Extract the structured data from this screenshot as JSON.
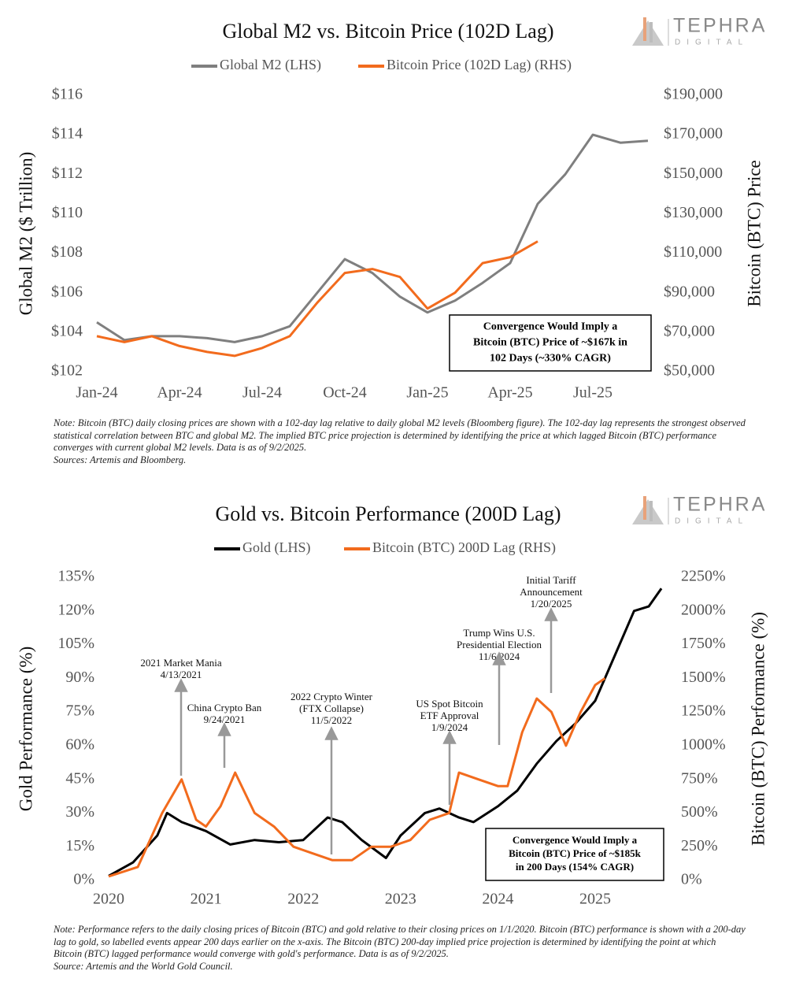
{
  "chart_data": [
    {
      "type": "line",
      "title": "Global M2 vs. Bitcoin Price (102D Lag)",
      "brand": "TEPHRA",
      "brand_sub": "DIGITAL",
      "categories": [
        "Jan-24",
        null,
        null,
        "Apr-24",
        null,
        null,
        "Jul-24",
        null,
        null,
        "Oct-24",
        null,
        null,
        "Jan-25",
        null,
        null,
        "Apr-25",
        null,
        null,
        "Jul-25",
        null,
        null
      ],
      "y_label": "Global M2 ($ Trillion)",
      "y2_label": "Bitcoin (BTC) Price",
      "ylim": [
        102,
        116
      ],
      "yticks": [
        {
          "value": 102,
          "label": "$102"
        },
        {
          "value": 104,
          "label": "$104"
        },
        {
          "value": 106,
          "label": "$106"
        },
        {
          "value": 108,
          "label": "$108"
        },
        {
          "value": 110,
          "label": "$110"
        },
        {
          "value": 112,
          "label": "$112"
        },
        {
          "value": 114,
          "label": "$114"
        },
        {
          "value": 116,
          "label": "$116"
        }
      ],
      "y2lim": [
        50000,
        190000
      ],
      "y2ticks": [
        {
          "value": 50000,
          "label": "$50,000"
        },
        {
          "value": 70000,
          "label": "$70,000"
        },
        {
          "value": 90000,
          "label": "$90,000"
        },
        {
          "value": 110000,
          "label": "$110,000"
        },
        {
          "value": 130000,
          "label": "$130,000"
        },
        {
          "value": 150000,
          "label": "$150,000"
        },
        {
          "value": 170000,
          "label": "$170,000"
        },
        {
          "value": 190000,
          "label": "$190,000"
        }
      ],
      "series": [
        {
          "name": "Global M2 (LHS)",
          "color": "#7f7f7f",
          "values": [
            104.5,
            103.6,
            103.8,
            103.8,
            103.7,
            103.5,
            103.8,
            104.3,
            106.0,
            107.7,
            107.0,
            105.8,
            105.0,
            105.6,
            106.5,
            107.5,
            110.5,
            112.0,
            114.0,
            113.6,
            113.7
          ]
        },
        {
          "name": "Bitcoin Price (102D Lag) (RHS)",
          "color": "#f26b1d",
          "axis": "y2",
          "values": [
            68000,
            65000,
            68000,
            63000,
            60000,
            58000,
            62000,
            68000,
            85000,
            100000,
            102000,
            98000,
            82000,
            90000,
            105000,
            108000,
            116000,
            null,
            null,
            null,
            null
          ]
        }
      ],
      "annotation": [
        "Convergence Would Imply a",
        "Bitcoin (BTC) Price of ~$167k in",
        "102 Days (~330% CAGR)"
      ],
      "notes": [
        "Note: Bitcoin (BTC) daily closing prices are shown with a 102-day lag relative to daily global M2 levels (Bloomberg figure). The 102-day lag represents the strongest observed statistical correlation between BTC and global M2. The implied BTC price projection is determined by identifying the price at which lagged Bitcoin (BTC) performance converges with current global M2 levels. Data is as of 9/2/2025.",
        "Sources: Artemis and Bloomberg."
      ]
    },
    {
      "type": "line",
      "title": "Gold vs. Bitcoin Performance (200D Lag)",
      "brand": "TEPHRA",
      "brand_sub": "DIGITAL",
      "xlim": [
        2020,
        2025.72
      ],
      "xticks": [
        2020,
        2021,
        2022,
        2023,
        2024,
        2025
      ],
      "y_label": "Gold Performance (%)",
      "y2_label": "Bitcoin (BTC) Performance (%)",
      "ylim": [
        0,
        135
      ],
      "yticks": [
        {
          "value": 0,
          "label": "0%"
        },
        {
          "value": 15,
          "label": "15%"
        },
        {
          "value": 30,
          "label": "30%"
        },
        {
          "value": 45,
          "label": "45%"
        },
        {
          "value": 60,
          "label": "60%"
        },
        {
          "value": 75,
          "label": "75%"
        },
        {
          "value": 90,
          "label": "90%"
        },
        {
          "value": 105,
          "label": "105%"
        },
        {
          "value": 120,
          "label": "120%"
        },
        {
          "value": 135,
          "label": "135%"
        }
      ],
      "y2lim": [
        0,
        2250
      ],
      "y2ticks": [
        {
          "value": 0,
          "label": "0%"
        },
        {
          "value": 250,
          "label": "250%"
        },
        {
          "value": 500,
          "label": "500%"
        },
        {
          "value": 750,
          "label": "750%"
        },
        {
          "value": 1000,
          "label": "1000%"
        },
        {
          "value": 1250,
          "label": "1250%"
        },
        {
          "value": 1500,
          "label": "1500%"
        },
        {
          "value": 1750,
          "label": "1750%"
        },
        {
          "value": 2000,
          "label": "2000%"
        },
        {
          "value": 2250,
          "label": "2250%"
        }
      ],
      "series": [
        {
          "name": "Gold (LHS)",
          "color": "#000000",
          "x": [
            2020.0,
            2020.25,
            2020.5,
            2020.6,
            2020.75,
            2021.0,
            2021.25,
            2021.5,
            2021.75,
            2022.0,
            2022.25,
            2022.4,
            2022.6,
            2022.85,
            2023.0,
            2023.25,
            2023.4,
            2023.6,
            2023.75,
            2024.0,
            2024.2,
            2024.4,
            2024.6,
            2024.8,
            2025.0,
            2025.25,
            2025.4,
            2025.55,
            2025.68
          ],
          "values": [
            2,
            8,
            20,
            30,
            26,
            22,
            16,
            18,
            17,
            18,
            28,
            26,
            18,
            10,
            20,
            30,
            32,
            28,
            26,
            33,
            40,
            52,
            62,
            70,
            80,
            105,
            120,
            122,
            130
          ]
        },
        {
          "name": "Bitcoin (BTC) 200D Lag (RHS)",
          "color": "#f26b1d",
          "axis": "y2",
          "x": [
            2020.0,
            2020.3,
            2020.55,
            2020.75,
            2020.9,
            2021.0,
            2021.15,
            2021.3,
            2021.5,
            2021.7,
            2021.9,
            2022.1,
            2022.3,
            2022.5,
            2022.7,
            2022.9,
            2023.1,
            2023.3,
            2023.5,
            2023.6,
            2023.8,
            2024.0,
            2024.1,
            2024.25,
            2024.4,
            2024.55,
            2024.7,
            2024.85,
            2025.0,
            2025.1
          ],
          "values": [
            30,
            100,
            500,
            750,
            450,
            400,
            550,
            800,
            500,
            400,
            250,
            200,
            150,
            150,
            250,
            250,
            300,
            450,
            500,
            800,
            750,
            700,
            700,
            1100,
            1350,
            1250,
            1000,
            1250,
            1450,
            1500
          ]
        }
      ],
      "events": [
        [
          "2021 Market Mania",
          "4/13/2021"
        ],
        [
          "China Crypto Ban",
          "9/24/2021"
        ],
        [
          "2022 Crypto Winter",
          "(FTX Collapse)",
          "11/5/2022"
        ],
        [
          "US Spot Bitcoin",
          "ETF Approval",
          "1/9/2024"
        ],
        [
          "Trump Wins U.S.",
          "Presidential Election",
          "11/6/2024"
        ],
        [
          "Initial Tariff",
          "Announcement",
          "1/20/2025"
        ]
      ],
      "annotation": [
        "Convergence Would Imply a",
        "Bitcoin (BTC) Price of ~$185k",
        "in 200 Days (154% CAGR)"
      ],
      "notes": [
        "Note: Performance refers to the daily closing prices of Bitcoin (BTC) and gold relative to their closing prices on 1/1/2020. Bitcoin (BTC) performance is shown with a 200-day lag to gold, so labelled events appear 200 days earlier on the x-axis. The Bitcoin (BTC) 200-day implied price projection is determined by identifying the point at which Bitcoin (BTC) lagged performance would converge with gold's performance. Data is as of 9/2/2025.",
        "Source: Artemis and the World Gold Council."
      ]
    }
  ]
}
